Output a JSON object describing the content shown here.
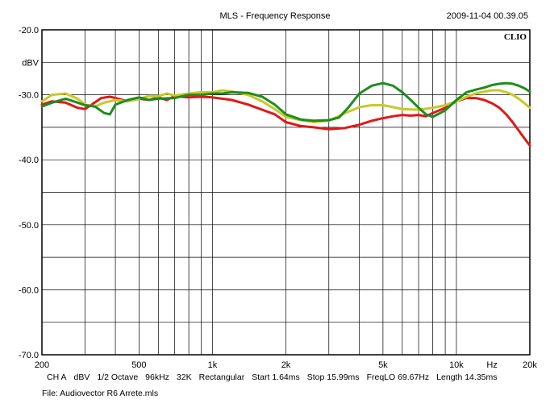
{
  "header": {
    "title": "MLS - Frequency Response",
    "timestamp": "2009-11-04 00.39.05",
    "brand": "CLIO"
  },
  "info": {
    "items": [
      "CH A",
      "dBV",
      "1/2 Octave",
      "96kHz",
      "32K",
      "Rectangular",
      "Start 1.64ms",
      "Stop 15.99ms",
      "FreqLO 69.67Hz",
      "Length 14.35ms"
    ]
  },
  "file": {
    "label": "File: Audiovector R6 Arrete.mls"
  },
  "chart_data": {
    "type": "line",
    "xscale": "log",
    "xlim": [
      200,
      20000
    ],
    "ylim": [
      -70,
      -20
    ],
    "ylabel": "dBV",
    "xlabel_unit": "Hz",
    "grid": true,
    "yticks": [
      {
        "value": -20,
        "label": "-20.0"
      },
      {
        "value": -30,
        "label": "-30.0"
      },
      {
        "value": -40,
        "label": "-40.0"
      },
      {
        "value": -50,
        "label": "-50.0"
      },
      {
        "value": -60,
        "label": "-60.0"
      },
      {
        "value": -70,
        "label": "-70.0"
      }
    ],
    "xticks": [
      {
        "value": 200,
        "label": "200"
      },
      {
        "value": 500,
        "label": "500"
      },
      {
        "value": 1000,
        "label": "1k"
      },
      {
        "value": 2000,
        "label": "2k"
      },
      {
        "value": 5000,
        "label": "5k"
      },
      {
        "value": 10000,
        "label": "10k"
      },
      {
        "value": 20000,
        "label": "20k"
      }
    ],
    "series": [
      {
        "color": "#e01818",
        "x": [
          200,
          220,
          250,
          280,
          300,
          320,
          350,
          380,
          400,
          450,
          500,
          550,
          600,
          650,
          700,
          800,
          900,
          1000,
          1200,
          1400,
          1600,
          1800,
          2000,
          2300,
          2600,
          3000,
          3500,
          4000,
          4500,
          5000,
          5500,
          6000,
          6500,
          7000,
          7500,
          8000,
          9000,
          10000,
          11000,
          12000,
          13000,
          14000,
          15000,
          16000,
          17000,
          18000,
          19000,
          20000
        ],
        "y": [
          -31.5,
          -31.0,
          -31.2,
          -32.0,
          -32.2,
          -31.5,
          -30.5,
          -30.3,
          -30.5,
          -31.0,
          -30.6,
          -30.8,
          -30.4,
          -30.8,
          -30.2,
          -30.4,
          -30.3,
          -30.4,
          -30.8,
          -31.5,
          -32.3,
          -33.0,
          -34.2,
          -34.8,
          -35.0,
          -35.3,
          -35.1,
          -34.6,
          -34.0,
          -33.6,
          -33.3,
          -33.1,
          -33.2,
          -33.1,
          -33.3,
          -32.8,
          -32.0,
          -31.0,
          -30.5,
          -30.5,
          -30.8,
          -31.3,
          -32.0,
          -33.0,
          -34.2,
          -35.5,
          -36.7,
          -37.8
        ]
      },
      {
        "color": "#c8c82a",
        "x": [
          200,
          220,
          250,
          280,
          300,
          330,
          360,
          400,
          450,
          500,
          550,
          600,
          650,
          700,
          800,
          900,
          1000,
          1100,
          1200,
          1400,
          1600,
          1800,
          2000,
          2300,
          2600,
          3000,
          3500,
          4000,
          4500,
          5000,
          5500,
          6000,
          7000,
          8000,
          9000,
          10000,
          11000,
          12000,
          13000,
          14000,
          15000,
          16000,
          17000,
          18000,
          19000,
          20000
        ],
        "y": [
          -31.0,
          -30.0,
          -29.8,
          -30.6,
          -31.5,
          -31.8,
          -31.2,
          -30.8,
          -31.0,
          -30.6,
          -30.2,
          -30.2,
          -29.8,
          -30.1,
          -29.8,
          -29.6,
          -29.6,
          -29.3,
          -29.5,
          -30.0,
          -31.0,
          -32.2,
          -33.4,
          -33.9,
          -34.2,
          -34.0,
          -32.8,
          -31.9,
          -31.6,
          -31.6,
          -31.9,
          -32.2,
          -32.3,
          -32.0,
          -31.6,
          -31.0,
          -30.3,
          -29.8,
          -29.5,
          -29.3,
          -29.3,
          -29.6,
          -30.0,
          -30.6,
          -31.3,
          -32.0
        ]
      },
      {
        "color": "#1e8c1e",
        "x": [
          200,
          220,
          250,
          280,
          300,
          330,
          360,
          380,
          400,
          450,
          500,
          550,
          600,
          700,
          800,
          900,
          1000,
          1100,
          1200,
          1400,
          1600,
          1800,
          2000,
          2300,
          2600,
          3000,
          3300,
          3600,
          4000,
          4500,
          5000,
          5500,
          6000,
          6500,
          7000,
          7500,
          8000,
          9000,
          10000,
          11000,
          12000,
          13000,
          14000,
          15000,
          16000,
          17000,
          18000,
          19000,
          20000
        ],
        "y": [
          -31.8,
          -31.2,
          -30.6,
          -31.2,
          -31.6,
          -31.8,
          -32.8,
          -33.0,
          -31.5,
          -30.8,
          -30.4,
          -30.8,
          -30.6,
          -30.5,
          -30.0,
          -30.0,
          -29.8,
          -29.8,
          -29.6,
          -29.7,
          -30.3,
          -31.5,
          -33.0,
          -33.8,
          -34.0,
          -33.9,
          -33.5,
          -32.0,
          -29.8,
          -28.6,
          -28.2,
          -28.6,
          -29.6,
          -30.8,
          -32.0,
          -33.0,
          -33.4,
          -32.4,
          -30.8,
          -29.6,
          -29.2,
          -28.9,
          -28.5,
          -28.3,
          -28.2,
          -28.3,
          -28.6,
          -29.0,
          -29.5
        ]
      }
    ]
  }
}
